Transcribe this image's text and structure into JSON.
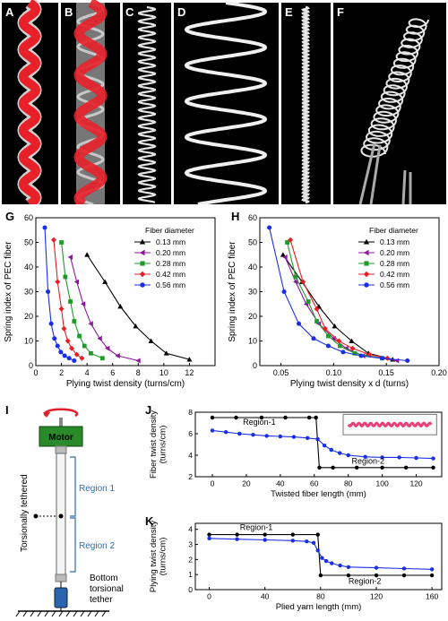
{
  "photo_panels": [
    {
      "label": "A"
    },
    {
      "label": "B"
    },
    {
      "label": "C"
    },
    {
      "label": "D"
    },
    {
      "label": "E"
    },
    {
      "label": "F"
    }
  ],
  "colors": {
    "red_overlay": "#e8202a",
    "black": "#000000",
    "purple": "#8b1a9a",
    "green": "#1f9a2a",
    "red": "#e81c24",
    "blue": "#1a2ee8",
    "motor": "#2a8a2a",
    "weight": "#2a64b0",
    "region": "#2a6db0",
    "rotation_arrow": "#e0202a"
  },
  "legend_title": "Fiber diameter",
  "diameters": [
    "0.13 mm",
    "0.20 mm",
    "0.28 mm",
    "0.42 mm",
    "0.56 mm"
  ],
  "chart_data": [
    {
      "panel": "G",
      "type": "line",
      "xlabel": "Plying twist density (turns/cm)",
      "ylabel": "Spring index of PEC fiber",
      "xlim": [
        0,
        14
      ],
      "ylim": [
        0,
        60
      ],
      "xticks": [
        0,
        2,
        4,
        6,
        8,
        10,
        12
      ],
      "yticks": [
        0,
        10,
        20,
        30,
        40,
        50,
        60
      ],
      "legend_title": "Fiber diameter",
      "legend_position": "top-right",
      "series": [
        {
          "name": "0.13 mm",
          "marker": "triangle-up",
          "color": "#000000",
          "x": [
            4.0,
            5.4,
            6.6,
            7.8,
            9.0,
            10.2,
            12.0
          ],
          "y": [
            45,
            34,
            24,
            16,
            10,
            5,
            2.5
          ]
        },
        {
          "name": "0.20 mm",
          "marker": "triangle-left",
          "color": "#8b1a9a",
          "x": [
            2.7,
            3.2,
            3.7,
            4.3,
            5.0,
            5.6,
            6.4,
            8.0
          ],
          "y": [
            44,
            34,
            25,
            17,
            11,
            7,
            4,
            2
          ]
        },
        {
          "name": "0.28 mm",
          "marker": "square",
          "color": "#1f9a2a",
          "x": [
            2.0,
            2.3,
            2.7,
            3.0,
            3.4,
            3.8,
            4.3,
            5.2
          ],
          "y": [
            50,
            36,
            26,
            18,
            12,
            8,
            5,
            3
          ]
        },
        {
          "name": "0.42 mm",
          "marker": "diamond",
          "color": "#e81c24",
          "x": [
            1.4,
            1.7,
            2.0,
            2.2,
            2.5,
            2.8,
            3.2,
            3.6
          ],
          "y": [
            51,
            34,
            23,
            15,
            10,
            7,
            4.5,
            3
          ]
        },
        {
          "name": "0.56 mm",
          "marker": "circle",
          "color": "#1a2ee8",
          "x": [
            0.7,
            0.95,
            1.2,
            1.45,
            1.7,
            1.95,
            2.25,
            2.6,
            3.0
          ],
          "y": [
            56,
            30,
            17,
            11,
            8,
            5.5,
            4,
            3,
            2
          ]
        }
      ]
    },
    {
      "panel": "H",
      "type": "line",
      "xlabel": "Plying twist density x d (turns)",
      "ylabel": "Spring index of PEC fiber",
      "xlim": [
        0.03,
        0.2
      ],
      "ylim": [
        0,
        60
      ],
      "xticks": [
        0.05,
        0.1,
        0.15,
        0.2
      ],
      "xtick_labels": [
        "0.05",
        "0.10",
        "0.15",
        "0.20"
      ],
      "yticks": [
        0,
        10,
        20,
        30,
        40,
        50,
        60
      ],
      "legend_title": "Fiber diameter",
      "legend_position": "top-right",
      "series": [
        {
          "name": "0.13 mm",
          "marker": "triangle-up",
          "color": "#000000",
          "x": [
            0.052,
            0.07,
            0.086,
            0.101,
            0.117,
            0.133,
            0.156
          ],
          "y": [
            45,
            34,
            24,
            16,
            10,
            5,
            2.5
          ]
        },
        {
          "name": "0.20 mm",
          "marker": "triangle-left",
          "color": "#8b1a9a",
          "x": [
            0.054,
            0.064,
            0.074,
            0.086,
            0.1,
            0.112,
            0.128,
            0.16
          ],
          "y": [
            44,
            34,
            25,
            17,
            11,
            7,
            4,
            2
          ]
        },
        {
          "name": "0.28 mm",
          "marker": "square",
          "color": "#1f9a2a",
          "x": [
            0.056,
            0.064,
            0.076,
            0.084,
            0.095,
            0.106,
            0.12,
            0.146
          ],
          "y": [
            50,
            36,
            26,
            18,
            12,
            8,
            5,
            3
          ]
        },
        {
          "name": "0.42 mm",
          "marker": "diamond",
          "color": "#e81c24",
          "x": [
            0.059,
            0.071,
            0.084,
            0.092,
            0.105,
            0.118,
            0.134,
            0.151
          ],
          "y": [
            51,
            34,
            23,
            15,
            10,
            7,
            4.5,
            3
          ]
        },
        {
          "name": "0.56 mm",
          "marker": "circle",
          "color": "#1a2ee8",
          "x": [
            0.039,
            0.053,
            0.067,
            0.081,
            0.095,
            0.109,
            0.126,
            0.146,
            0.17
          ],
          "y": [
            56,
            30,
            17,
            11,
            8,
            5.5,
            4,
            3,
            2
          ]
        }
      ]
    },
    {
      "panel": "J",
      "type": "line",
      "xlabel": "Twisted fiber length (mm)",
      "ylabel": "Fiber twist density (turns/cm)",
      "xlim": [
        -10,
        135
      ],
      "ylim": [
        2,
        8
      ],
      "xticks": [
        0,
        20,
        40,
        60,
        80,
        100,
        120
      ],
      "yticks": [
        2,
        4,
        6,
        8
      ],
      "annotations": [
        "Region-1",
        "Region-2"
      ],
      "series": [
        {
          "marker": "circle-black",
          "color": "#000000",
          "x": [
            0,
            14,
            29,
            43,
            57,
            61,
            63,
            71,
            85,
            100,
            114,
            130
          ],
          "y": [
            7.5,
            7.5,
            7.5,
            7.5,
            7.5,
            7.5,
            2.85,
            2.85,
            2.85,
            2.85,
            2.85,
            2.85
          ]
        },
        {
          "marker": "circle-blue",
          "color": "#1a2ee8",
          "x": [
            0,
            8,
            16,
            24,
            32,
            40,
            48,
            56,
            62,
            66,
            70,
            75,
            80,
            90,
            100,
            110,
            120,
            130
          ],
          "y": [
            6.3,
            6.15,
            6.0,
            5.9,
            5.8,
            5.75,
            5.7,
            5.6,
            5.5,
            4.9,
            4.5,
            4.2,
            4.0,
            3.85,
            3.8,
            3.8,
            3.75,
            3.7
          ]
        }
      ]
    },
    {
      "panel": "K",
      "type": "line",
      "xlabel": "Plied yarn length (mm)",
      "ylabel": "Plying twist density (turns/cm)",
      "xlim": [
        -10,
        167
      ],
      "ylim": [
        0,
        4.4
      ],
      "xticks": [
        0,
        40,
        80,
        120,
        160
      ],
      "yticks": [
        0,
        1,
        2,
        3,
        4
      ],
      "annotations": [
        "Region-1",
        "Region-2"
      ],
      "series": [
        {
          "marker": "circle-black",
          "color": "#000000",
          "x": [
            0,
            20,
            40,
            60,
            78,
            80,
            100,
            120,
            140,
            160
          ],
          "y": [
            3.65,
            3.65,
            3.65,
            3.65,
            3.65,
            0.95,
            0.95,
            0.95,
            0.95,
            0.95
          ]
        },
        {
          "marker": "circle-blue",
          "color": "#1a2ee8",
          "x": [
            0,
            20,
            40,
            60,
            70,
            75,
            78,
            81,
            84,
            88,
            94,
            100,
            120,
            140,
            160
          ],
          "y": [
            3.4,
            3.35,
            3.3,
            3.25,
            3.2,
            3.1,
            2.6,
            2.1,
            1.9,
            1.75,
            1.6,
            1.5,
            1.45,
            1.4,
            1.35
          ]
        }
      ]
    }
  ],
  "schematic": {
    "label": "I",
    "motor": "Motor",
    "region1": "Region 1",
    "region2": "Region 2",
    "side_label": "Torsionally tethered",
    "bottom_label_1": "Bottom",
    "bottom_label_2": "torsional",
    "bottom_label_3": "tether"
  }
}
